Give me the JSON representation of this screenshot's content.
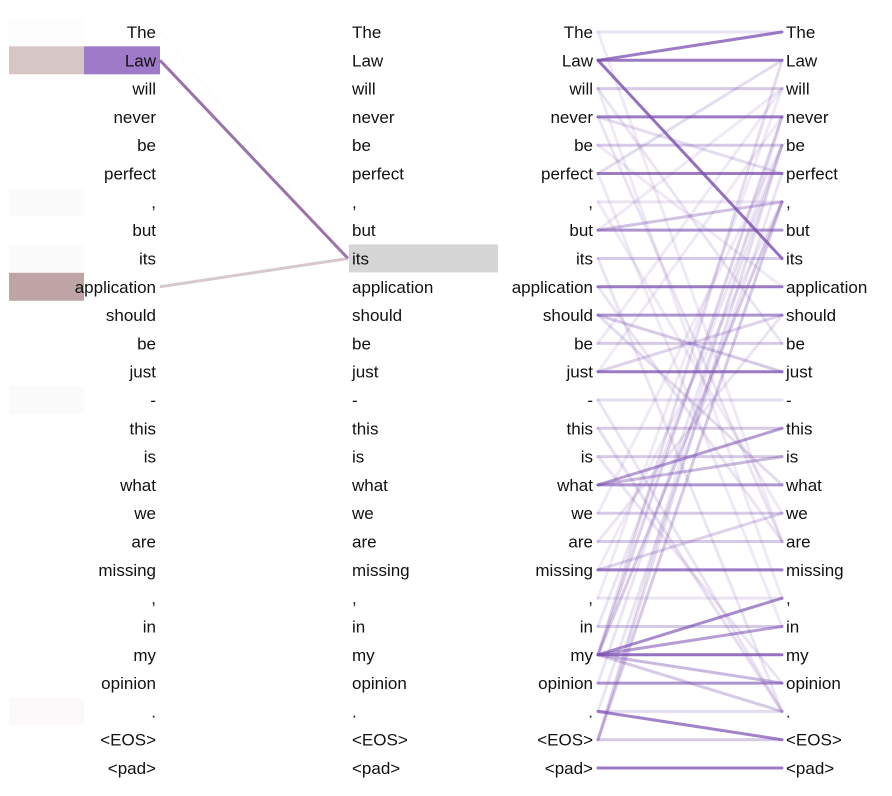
{
  "tokens": [
    "The",
    "Law",
    "will",
    "never",
    "be",
    "perfect",
    ",",
    "but",
    "its",
    "application",
    "should",
    "be",
    "just",
    "-",
    "this",
    "is",
    "what",
    "we",
    "are",
    "missing",
    ",",
    "in",
    "my",
    "opinion",
    ".",
    "<EOS>",
    "<pad>"
  ],
  "left_panel": {
    "selected_source_index": 1,
    "selected_target_index": 8,
    "source_weights": [
      0.01,
      0.28,
      0.0,
      0.0,
      0.0,
      0.0,
      0.02,
      0.0,
      0.02,
      0.45,
      0.0,
      0.0,
      0.0,
      0.02,
      0.0,
      0.0,
      0.0,
      0.0,
      0.0,
      0.0,
      0.0,
      0.0,
      0.0,
      0.0,
      0.03,
      0.0,
      0.0
    ],
    "edges": [
      {
        "from": 1,
        "to": 8,
        "weight": 0.85,
        "color": "#8a5a9c"
      },
      {
        "from": 9,
        "to": 8,
        "weight": 0.55,
        "color": "#b79aa6"
      },
      {
        "from": 0,
        "to": 8,
        "weight": 0.05,
        "color": "#d8d0e0"
      }
    ]
  },
  "right_panel": {
    "edges": [
      {
        "from": 0,
        "to": 0,
        "weight": 0.15
      },
      {
        "from": 1,
        "to": 0,
        "weight": 0.75
      },
      {
        "from": 1,
        "to": 1,
        "weight": 0.75
      },
      {
        "from": 1,
        "to": 8,
        "weight": 0.8
      },
      {
        "from": 2,
        "to": 2,
        "weight": 0.3
      },
      {
        "from": 3,
        "to": 3,
        "weight": 0.75
      },
      {
        "from": 3,
        "to": 5,
        "weight": 0.2
      },
      {
        "from": 4,
        "to": 4,
        "weight": 0.3
      },
      {
        "from": 5,
        "to": 5,
        "weight": 0.75
      },
      {
        "from": 5,
        "to": 1,
        "weight": 0.2
      },
      {
        "from": 6,
        "to": 6,
        "weight": 0.15
      },
      {
        "from": 7,
        "to": 7,
        "weight": 0.6
      },
      {
        "from": 7,
        "to": 6,
        "weight": 0.35
      },
      {
        "from": 8,
        "to": 8,
        "weight": 0.3
      },
      {
        "from": 9,
        "to": 9,
        "weight": 0.75
      },
      {
        "from": 10,
        "to": 10,
        "weight": 0.6
      },
      {
        "from": 10,
        "to": 12,
        "weight": 0.3
      },
      {
        "from": 11,
        "to": 11,
        "weight": 0.3
      },
      {
        "from": 12,
        "to": 12,
        "weight": 0.75
      },
      {
        "from": 12,
        "to": 10,
        "weight": 0.25
      },
      {
        "from": 13,
        "to": 13,
        "weight": 0.2
      },
      {
        "from": 14,
        "to": 14,
        "weight": 0.3
      },
      {
        "from": 15,
        "to": 15,
        "weight": 0.3
      },
      {
        "from": 16,
        "to": 16,
        "weight": 0.6
      },
      {
        "from": 16,
        "to": 14,
        "weight": 0.55
      },
      {
        "from": 16,
        "to": 15,
        "weight": 0.4
      },
      {
        "from": 17,
        "to": 17,
        "weight": 0.3
      },
      {
        "from": 18,
        "to": 18,
        "weight": 0.3
      },
      {
        "from": 19,
        "to": 19,
        "weight": 0.75
      },
      {
        "from": 19,
        "to": 17,
        "weight": 0.25
      },
      {
        "from": 20,
        "to": 20,
        "weight": 0.15
      },
      {
        "from": 21,
        "to": 21,
        "weight": 0.3
      },
      {
        "from": 22,
        "to": 22,
        "weight": 0.8
      },
      {
        "from": 22,
        "to": 20,
        "weight": 0.65
      },
      {
        "from": 22,
        "to": 21,
        "weight": 0.55
      },
      {
        "from": 22,
        "to": 23,
        "weight": 0.4
      },
      {
        "from": 22,
        "to": 24,
        "weight": 0.3
      },
      {
        "from": 22,
        "to": 3,
        "weight": 0.25
      },
      {
        "from": 22,
        "to": 6,
        "weight": 0.3
      },
      {
        "from": 22,
        "to": 1,
        "weight": 0.2
      },
      {
        "from": 23,
        "to": 23,
        "weight": 0.6
      },
      {
        "from": 24,
        "to": 25,
        "weight": 0.7
      },
      {
        "from": 24,
        "to": 24,
        "weight": 0.2
      },
      {
        "from": 25,
        "to": 25,
        "weight": 0.3
      },
      {
        "from": 25,
        "to": 6,
        "weight": 0.3
      },
      {
        "from": 26,
        "to": 26,
        "weight": 0.75
      },
      {
        "from": 2,
        "to": 11,
        "weight": 0.15
      },
      {
        "from": 3,
        "to": 18,
        "weight": 0.15
      },
      {
        "from": 4,
        "to": 9,
        "weight": 0.12
      },
      {
        "from": 6,
        "to": 17,
        "weight": 0.12
      },
      {
        "from": 8,
        "to": 24,
        "weight": 0.15
      },
      {
        "from": 9,
        "to": 18,
        "weight": 0.15
      },
      {
        "from": 10,
        "to": 16,
        "weight": 0.2
      },
      {
        "from": 11,
        "to": 2,
        "weight": 0.12
      },
      {
        "from": 13,
        "to": 24,
        "weight": 0.15
      },
      {
        "from": 14,
        "to": 24,
        "weight": 0.18
      },
      {
        "from": 15,
        "to": 23,
        "weight": 0.15
      },
      {
        "from": 17,
        "to": 4,
        "weight": 0.12
      },
      {
        "from": 18,
        "to": 10,
        "weight": 0.15
      },
      {
        "from": 20,
        "to": 2,
        "weight": 0.12
      },
      {
        "from": 21,
        "to": 4,
        "weight": 0.15
      },
      {
        "from": 23,
        "to": 4,
        "weight": 0.15
      },
      {
        "from": 25,
        "to": 4,
        "weight": 0.2
      },
      {
        "from": 24,
        "to": 5,
        "weight": 0.15
      },
      {
        "from": 25,
        "to": 3,
        "weight": 0.12
      },
      {
        "from": 0,
        "to": 18,
        "weight": 0.12
      },
      {
        "from": 2,
        "to": 20,
        "weight": 0.12
      },
      {
        "from": 5,
        "to": 21,
        "weight": 0.12
      },
      {
        "from": 7,
        "to": 2,
        "weight": 0.12
      },
      {
        "from": 12,
        "to": 3,
        "weight": 0.12
      },
      {
        "from": 19,
        "to": 6,
        "weight": 0.12
      }
    ]
  },
  "colors": {
    "edge": "#7a4fb0",
    "selected_source": "#9f7ac9",
    "selected_target": "#d6d6d6",
    "weight_bar": "#b79a9a"
  }
}
